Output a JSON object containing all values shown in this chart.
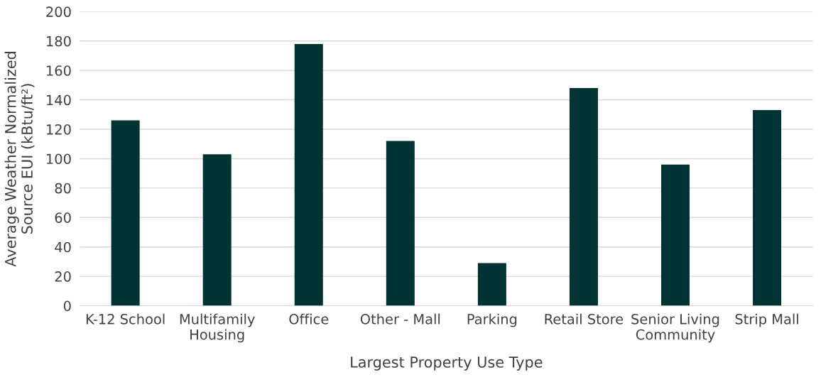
{
  "chart_data": {
    "type": "bar",
    "xlabel": "Largest Property Use Type",
    "ylabel": "Average Weather Normalized Source EUI (kBtu/ft²)",
    "categories": [
      "K-12 School",
      "Multifamily Housing",
      "Office",
      "Other - Mall",
      "Parking",
      "Retail Store",
      "Senior Living Community",
      "Strip Mall"
    ],
    "values": [
      126,
      103,
      178,
      112,
      29,
      148,
      96,
      133
    ],
    "color": "#003333",
    "ylim": [
      0,
      200
    ],
    "yticks": [
      0,
      20,
      40,
      60,
      80,
      100,
      120,
      140,
      160,
      180,
      200
    ],
    "grid": "y",
    "legend": false
  }
}
